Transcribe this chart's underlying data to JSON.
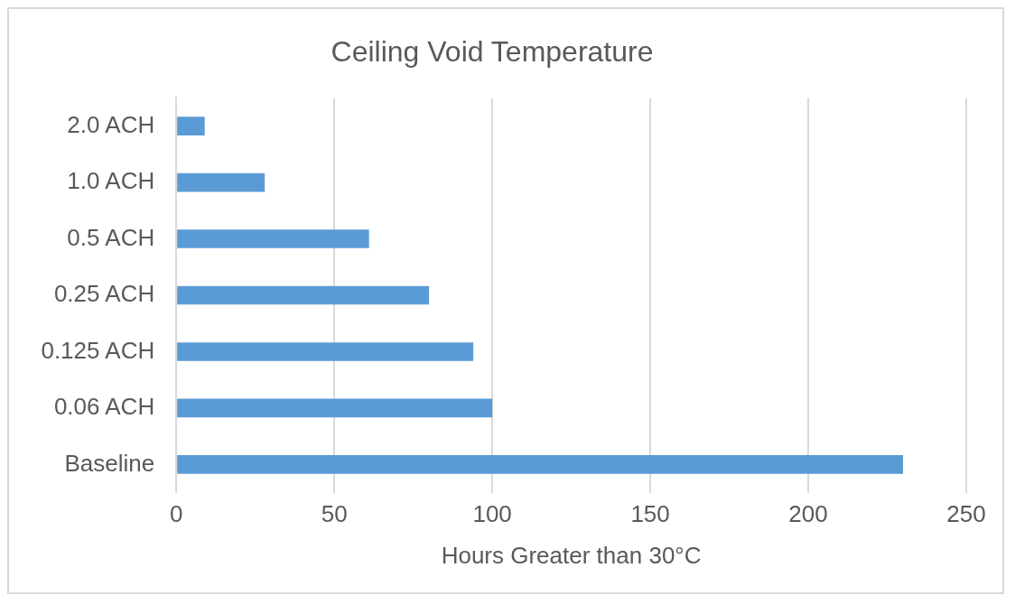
{
  "chart_data": {
    "type": "bar",
    "orientation": "horizontal",
    "title": "Ceiling Void Temperature",
    "xlabel": "Hours Greater than 30°C",
    "categories": [
      "2.0 ACH",
      "1.0 ACH",
      "0.5 ACH",
      "0.25 ACH",
      "0.125 ACH",
      "0.06 ACH",
      "Baseline"
    ],
    "values": [
      9,
      28,
      61,
      80,
      94,
      100,
      230
    ],
    "color": "#5b9bd5",
    "xlim": [
      0,
      250
    ],
    "xticks": [
      0,
      50,
      100,
      150,
      200,
      250
    ],
    "grid": "x",
    "legend": false
  }
}
